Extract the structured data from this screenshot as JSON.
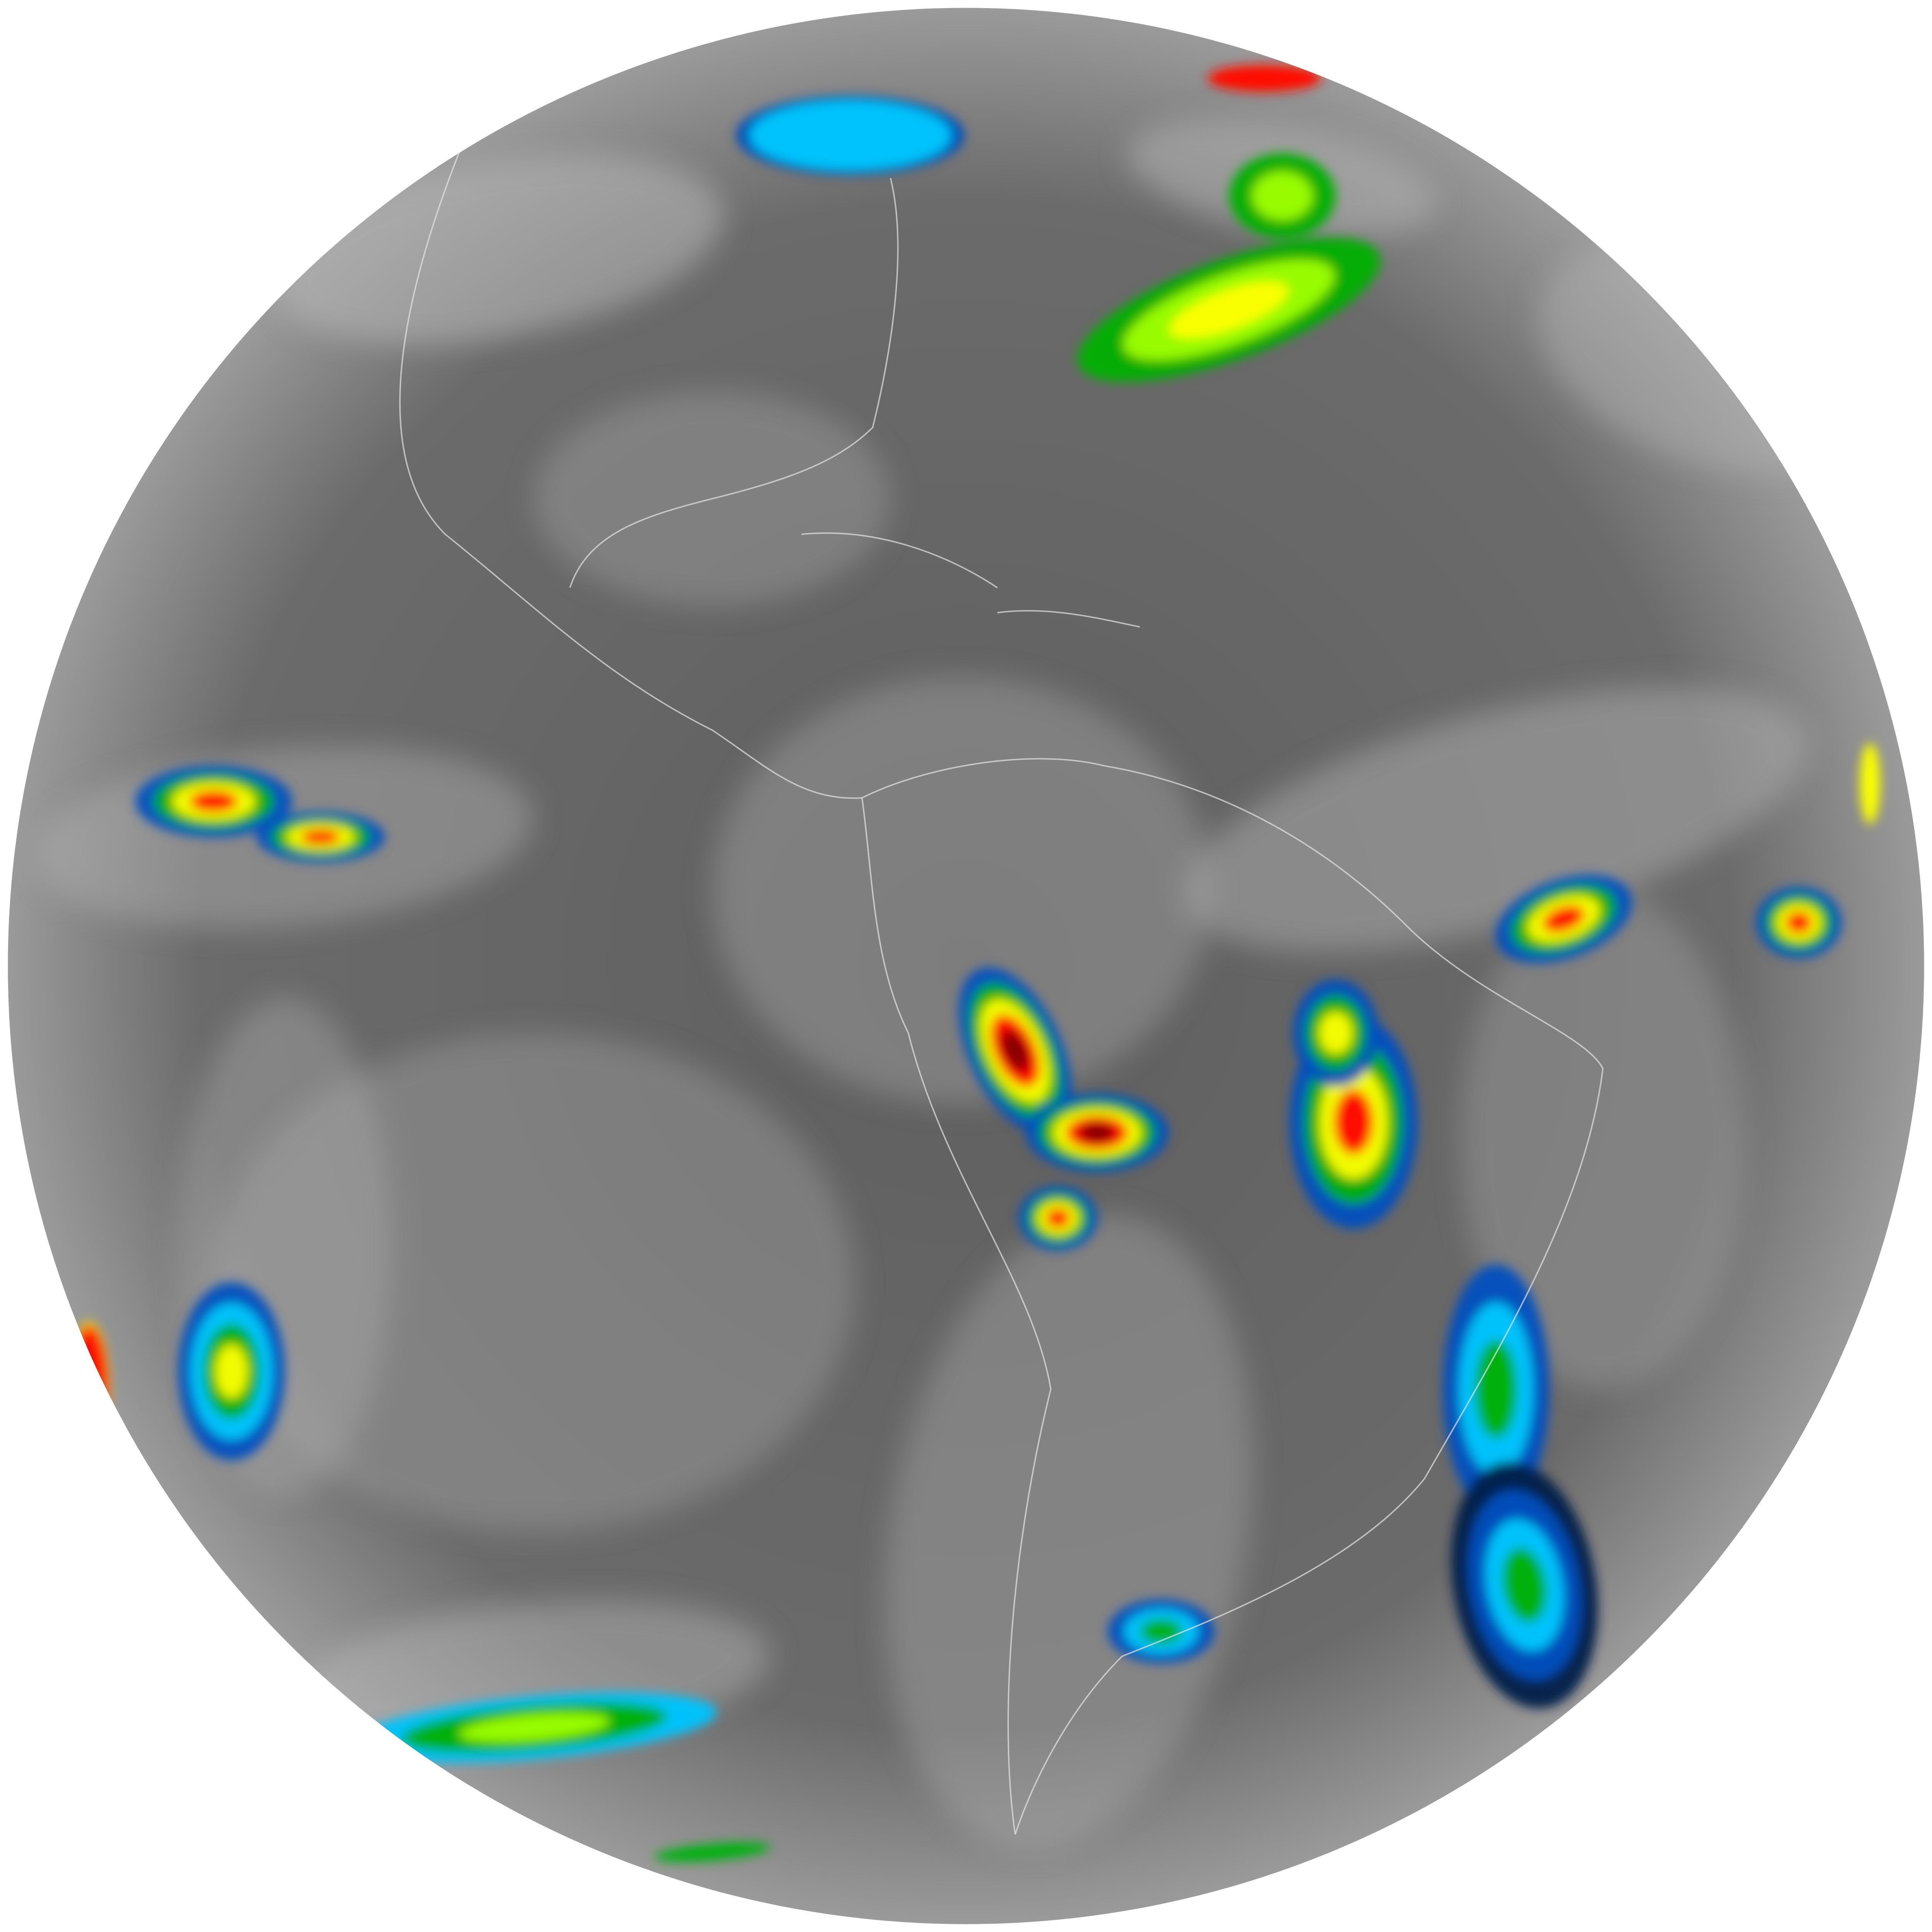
{
  "image": {
    "kind": "full-disk infrared satellite view",
    "background": "#ffffff",
    "disk_base_color": "#6a6a6a",
    "cloud_gray": "#b8b8b8",
    "border_color": "#e6e6e6",
    "colormap": [
      "#00204a",
      "#0050c0",
      "#00c8ff",
      "#00b000",
      "#a0ff00",
      "#ffff00",
      "#ff8000",
      "#ff0000",
      "#800000"
    ]
  }
}
